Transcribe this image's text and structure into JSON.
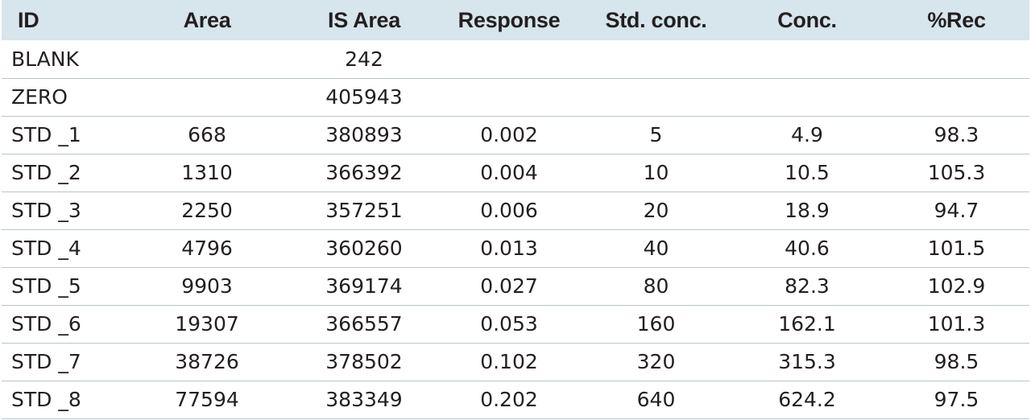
{
  "table": {
    "headers": [
      "ID",
      "Area",
      "IS Area",
      "Response",
      "Std. conc.",
      "Conc.",
      "%Rec"
    ],
    "rows": [
      [
        "BLANK",
        "",
        "242",
        "",
        "",
        "",
        ""
      ],
      [
        "ZERO",
        "",
        "405943",
        "",
        "",
        "",
        ""
      ],
      [
        "STD _1",
        "668",
        "380893",
        "0.002",
        "5",
        "4.9",
        "98.3"
      ],
      [
        "STD _2",
        "1310",
        "366392",
        "0.004",
        "10",
        "10.5",
        "105.3"
      ],
      [
        "STD _3",
        "2250",
        "357251",
        "0.006",
        "20",
        "18.9",
        "94.7"
      ],
      [
        "STD _4",
        "4796",
        "360260",
        "0.013",
        "40",
        "40.6",
        "101.5"
      ],
      [
        "STD _5",
        "9903",
        "369174",
        "0.027",
        "80",
        "82.3",
        "102.9"
      ],
      [
        "STD _6",
        "19307",
        "366557",
        "0.053",
        "160",
        "162.1",
        "101.3"
      ],
      [
        "STD _7",
        "38726",
        "378502",
        "0.102",
        "320",
        "315.3",
        "98.5"
      ],
      [
        "STD _8",
        "77594",
        "383349",
        "0.202",
        "640",
        "624.2",
        "97.5"
      ]
    ]
  }
}
